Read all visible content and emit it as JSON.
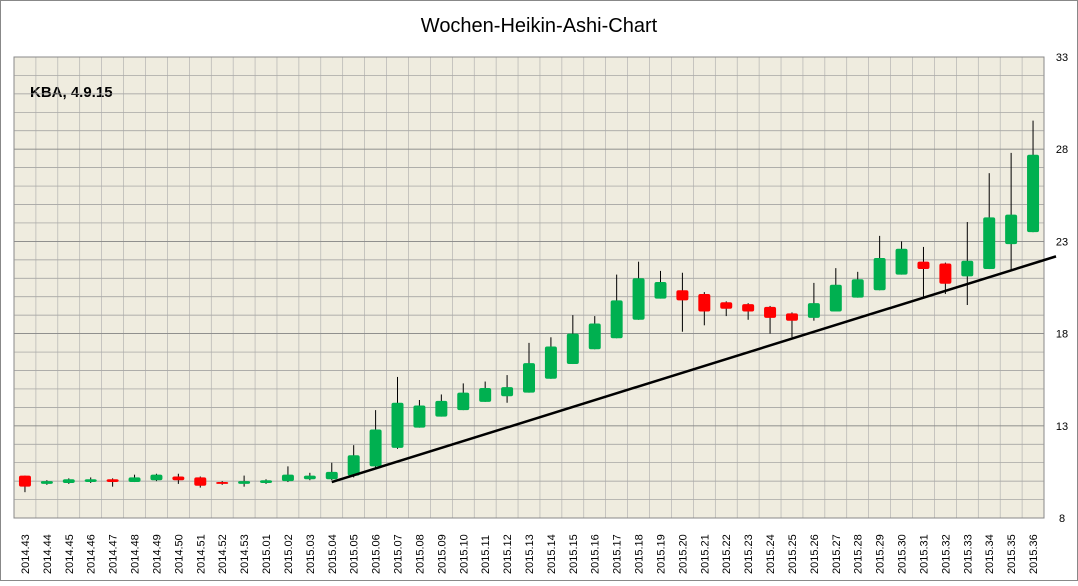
{
  "chart_data": {
    "type": "candlestick",
    "title": "Wochen-Heikin-Ashi-Chart",
    "annotation": "KBA, 4.9.15",
    "categories": [
      "2014.43",
      "2014.44",
      "2014.45",
      "2014.46",
      "2014.47",
      "2014.48",
      "2014.49",
      "2014.50",
      "2014.51",
      "2014.52",
      "2014.53",
      "2015.01",
      "2015.02",
      "2015.03",
      "2015.04",
      "2015.05",
      "2015.06",
      "2015.07",
      "2015.08",
      "2015.09",
      "2015.10",
      "2015.11",
      "2015.12",
      "2015.13",
      "2015.14",
      "2015.15",
      "2015.16",
      "2015.17",
      "2015.18",
      "2015.19",
      "2015.20",
      "2015.21",
      "2015.22",
      "2015.23",
      "2015.24",
      "2015.25",
      "2015.26",
      "2015.27",
      "2015.28",
      "2015.29",
      "2015.30",
      "2015.31",
      "2015.32",
      "2015.33",
      "2015.34",
      "2015.35",
      "2015.36"
    ],
    "open": [
      10.3,
      9.85,
      9.9,
      9.95,
      10.1,
      9.95,
      10.05,
      10.25,
      10.2,
      9.95,
      9.85,
      9.9,
      10.0,
      10.1,
      10.1,
      10.3,
      10.8,
      11.8,
      12.9,
      13.5,
      13.85,
      14.3,
      14.6,
      14.8,
      15.55,
      16.35,
      17.15,
      17.75,
      18.75,
      19.9,
      20.35,
      20.15,
      19.7,
      19.6,
      19.45,
      19.1,
      18.85,
      19.2,
      19.95,
      20.35,
      21.2,
      21.9,
      21.8,
      21.1,
      21.5,
      22.85,
      23.5
    ],
    "high": [
      10.3,
      10.05,
      10.15,
      10.2,
      10.15,
      10.35,
      10.4,
      10.4,
      10.25,
      10.0,
      10.3,
      10.1,
      10.8,
      10.45,
      11.0,
      11.95,
      13.85,
      15.65,
      14.4,
      14.7,
      15.3,
      15.4,
      15.75,
      17.5,
      17.8,
      19.0,
      18.95,
      21.2,
      21.9,
      21.4,
      21.3,
      20.25,
      19.75,
      19.65,
      19.5,
      19.15,
      20.75,
      21.55,
      21.35,
      23.3,
      23.0,
      22.7,
      21.85,
      24.05,
      26.7,
      27.8,
      29.55
    ],
    "low": [
      9.4,
      9.8,
      9.85,
      9.9,
      9.7,
      9.95,
      10.0,
      9.85,
      9.65,
      9.8,
      9.7,
      9.85,
      9.95,
      10.05,
      10.05,
      10.2,
      10.7,
      11.75,
      12.9,
      13.5,
      13.85,
      14.3,
      14.25,
      14.8,
      15.55,
      16.35,
      17.15,
      17.75,
      18.75,
      19.9,
      18.1,
      18.45,
      18.95,
      18.75,
      18.0,
      17.8,
      18.7,
      19.2,
      19.95,
      20.35,
      21.2,
      20.0,
      20.15,
      19.55,
      21.5,
      21.45,
      23.5
    ],
    "close": [
      9.7,
      10.0,
      10.1,
      10.1,
      9.95,
      10.2,
      10.35,
      10.05,
      9.75,
      9.85,
      10.0,
      10.05,
      10.35,
      10.3,
      10.5,
      11.4,
      12.8,
      14.25,
      14.1,
      14.35,
      14.8,
      15.05,
      15.1,
      16.4,
      17.3,
      18.0,
      18.55,
      19.8,
      21.0,
      20.8,
      19.8,
      19.2,
      19.35,
      19.2,
      18.85,
      18.7,
      19.65,
      20.65,
      20.95,
      22.1,
      22.6,
      21.5,
      20.7,
      21.95,
      24.3,
      24.45,
      27.7
    ],
    "up_color": "#00b050",
    "down_color": "#ff0000",
    "ylim": [
      8,
      33
    ],
    "yticks": [
      8,
      13,
      18,
      23,
      28,
      33
    ],
    "minor_grid_step": 1,
    "grid": true,
    "trendline": {
      "x": [
        "2015.04",
        "2015.36"
      ],
      "y": [
        9.95,
        21.8
      ],
      "color": "#000000"
    }
  }
}
